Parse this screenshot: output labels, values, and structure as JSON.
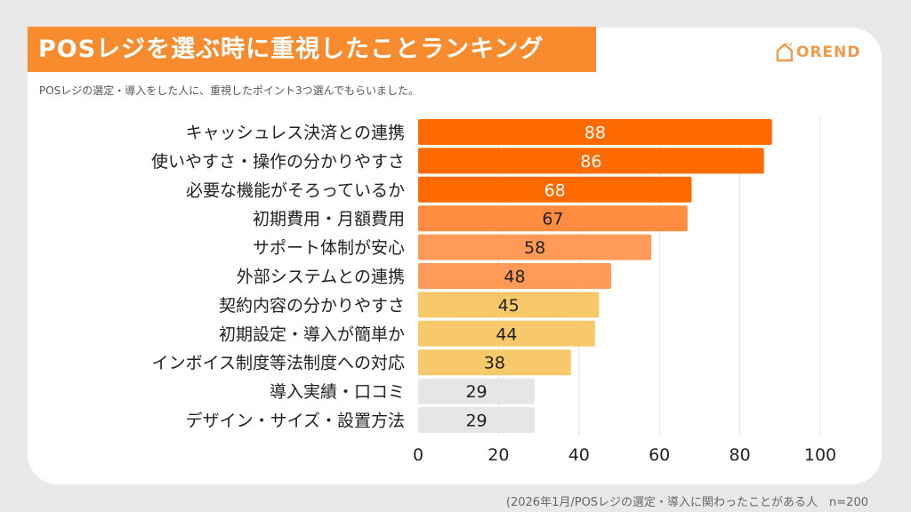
{
  "title": "POSレジを選ぶ時に重視したことランキング",
  "subtitle": "POSレジの選定・導入をした人に、重視したポイント3つ選んでもらいました。",
  "logo": "OREND",
  "footnote": "(2026年1月/POSレジの選定・導入に関わったことがある人　n=200",
  "chart_data": {
    "type": "bar",
    "orientation": "horizontal",
    "categories": [
      "キャッシュレス決済との連携",
      "使いやすさ・操作の分かりやすさ",
      "必要な機能がそろっているか",
      "初期費用・月額費用",
      "サポート体制が安心",
      "外部システムとの連携",
      "契約内容の分かりやすさ",
      "初期設定・導入が簡単か",
      "インボイス制度等法制度への対応",
      "導入実績・口コミ",
      "デザイン・サイズ・設置方法"
    ],
    "values": [
      88,
      86,
      68,
      67,
      58,
      48,
      45,
      44,
      38,
      29,
      29
    ],
    "colors": [
      "#ff6a00",
      "#ff6a00",
      "#ff6a00",
      "#ff8c40",
      "#ff9a58",
      "#ff9a58",
      "#f7c96b",
      "#f7c96b",
      "#f7c96b",
      "#e6e6e6",
      "#e6e6e6"
    ],
    "value_label_colors": [
      "#ffffff",
      "#ffffff",
      "#ffffff",
      "#222222",
      "#222222",
      "#222222",
      "#222222",
      "#222222",
      "#222222",
      "#222222",
      "#222222"
    ],
    "xlim": [
      0,
      100
    ],
    "xticks": [
      0,
      20,
      40,
      60,
      80,
      100
    ],
    "grid": true
  }
}
